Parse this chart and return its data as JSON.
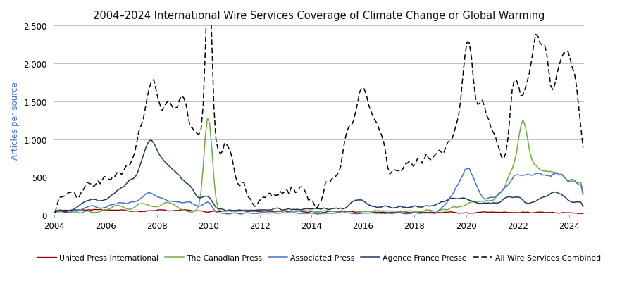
{
  "title": "2004–2024 International Wire Services Coverage of Climate Change or Global Warming",
  "ylabel": "Articles per source",
  "xlim_start": 2004.0,
  "xlim_end": 2024.583,
  "ylim": [
    0,
    2500
  ],
  "yticks": [
    0,
    500,
    1000,
    1500,
    2000,
    2500
  ],
  "ytick_labels": [
    "0",
    "500",
    "1,000",
    "1,500",
    "2,000",
    "2,500"
  ],
  "xticks": [
    2004,
    2006,
    2008,
    2010,
    2012,
    2014,
    2016,
    2018,
    2020,
    2022,
    2024
  ],
  "colors": {
    "AP": "#4472C4",
    "AFP": "#1F3864",
    "CP": "#70AD47",
    "UPI": "#8B0000",
    "combined": "#000000"
  },
  "background": "#FFFFFF",
  "grid_color": "#C0C0C0",
  "legend_labels": [
    "Associated Press",
    "Agence France Presse",
    "The Canadian Press",
    "United Press International",
    "All Wire Services Combined"
  ]
}
